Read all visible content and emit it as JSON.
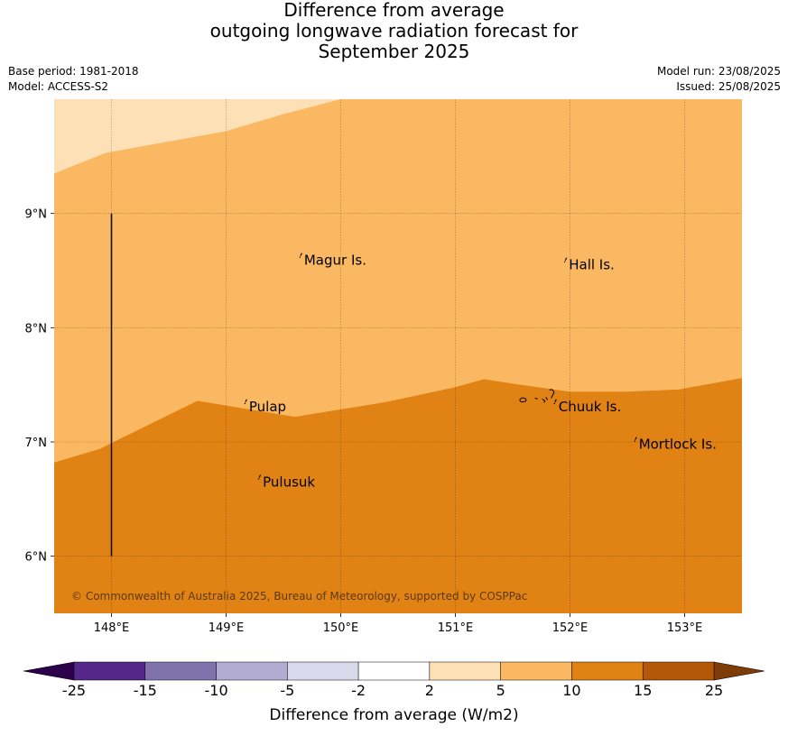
{
  "title": {
    "line1": "Difference from average",
    "line2": "outgoing longwave radiation forecast for",
    "line3": "September 2025"
  },
  "meta": {
    "base_period": "Base period: 1981-2018",
    "model": "Model: ACCESS-S2",
    "model_run": "Model run: 23/08/2025",
    "issued": "Issued: 25/08/2025"
  },
  "map": {
    "lon_range": [
      147.5,
      153.5
    ],
    "lat_range": [
      5.5,
      10.0
    ],
    "x_ticks": [
      148,
      149,
      150,
      151,
      152,
      153
    ],
    "x_tick_labels": [
      "148°E",
      "149°E",
      "150°E",
      "151°E",
      "152°E",
      "153°E"
    ],
    "y_ticks": [
      6,
      7,
      8,
      9
    ],
    "y_tick_labels": [
      "6°N",
      "7°N",
      "8°N",
      "9°N"
    ],
    "gridlines": true,
    "regions": [
      {
        "category": "2 to 5",
        "color": "#fde0b6",
        "boundary": [
          [
            147.5,
            9.35
          ],
          [
            147.95,
            9.53
          ],
          [
            148.5,
            9.63
          ],
          [
            149.0,
            9.72
          ],
          [
            149.5,
            9.87
          ],
          [
            150.0,
            10.0
          ]
        ]
      },
      {
        "category": "5 to 10",
        "color": "#fbb862"
      },
      {
        "category": "10 to 15",
        "color": "#e08214",
        "boundary": [
          [
            147.5,
            6.82
          ],
          [
            147.9,
            6.94
          ],
          [
            148.0,
            6.99
          ],
          [
            148.75,
            7.36
          ],
          [
            149.6,
            7.22
          ],
          [
            150.4,
            7.35
          ],
          [
            151.0,
            7.48
          ],
          [
            151.25,
            7.55
          ],
          [
            151.5,
            7.51
          ],
          [
            152.0,
            7.44
          ],
          [
            152.5,
            7.44
          ],
          [
            152.95,
            7.46
          ],
          [
            153.5,
            7.56
          ]
        ]
      }
    ],
    "transect": {
      "lon": 148.0,
      "lat_from": 6.0,
      "lat_to": 9.0
    },
    "places": [
      {
        "name": "Magur Is.",
        "lon": 149.68,
        "lat": 8.55
      },
      {
        "name": "Hall Is.",
        "lon": 151.99,
        "lat": 8.51
      },
      {
        "name": "Pulap",
        "lon": 149.2,
        "lat": 7.27
      },
      {
        "name": "Chuuk Is.",
        "lon": 151.9,
        "lat": 7.27
      },
      {
        "name": "Mortlock Is.",
        "lon": 152.6,
        "lat": 6.94
      },
      {
        "name": "Pulusuk",
        "lon": 149.32,
        "lat": 6.61
      }
    ],
    "credit": "© Commonwealth of Australia 2025, Bureau of Meteorology, supported by COSPPac"
  },
  "colorbar": {
    "title": "Difference from average (W/m2)",
    "labels": [
      "-25",
      "-15",
      "-10",
      "-5",
      "-2",
      "2",
      "5",
      "10",
      "15",
      "25"
    ],
    "under_color": "#2d004b",
    "over_color": "#7f3b08",
    "colors": [
      "#542788",
      "#8073ac",
      "#b2abd2",
      "#d8daeb",
      "#ffffff",
      "#fde0b6",
      "#fbb862",
      "#e08214",
      "#b35806"
    ]
  }
}
